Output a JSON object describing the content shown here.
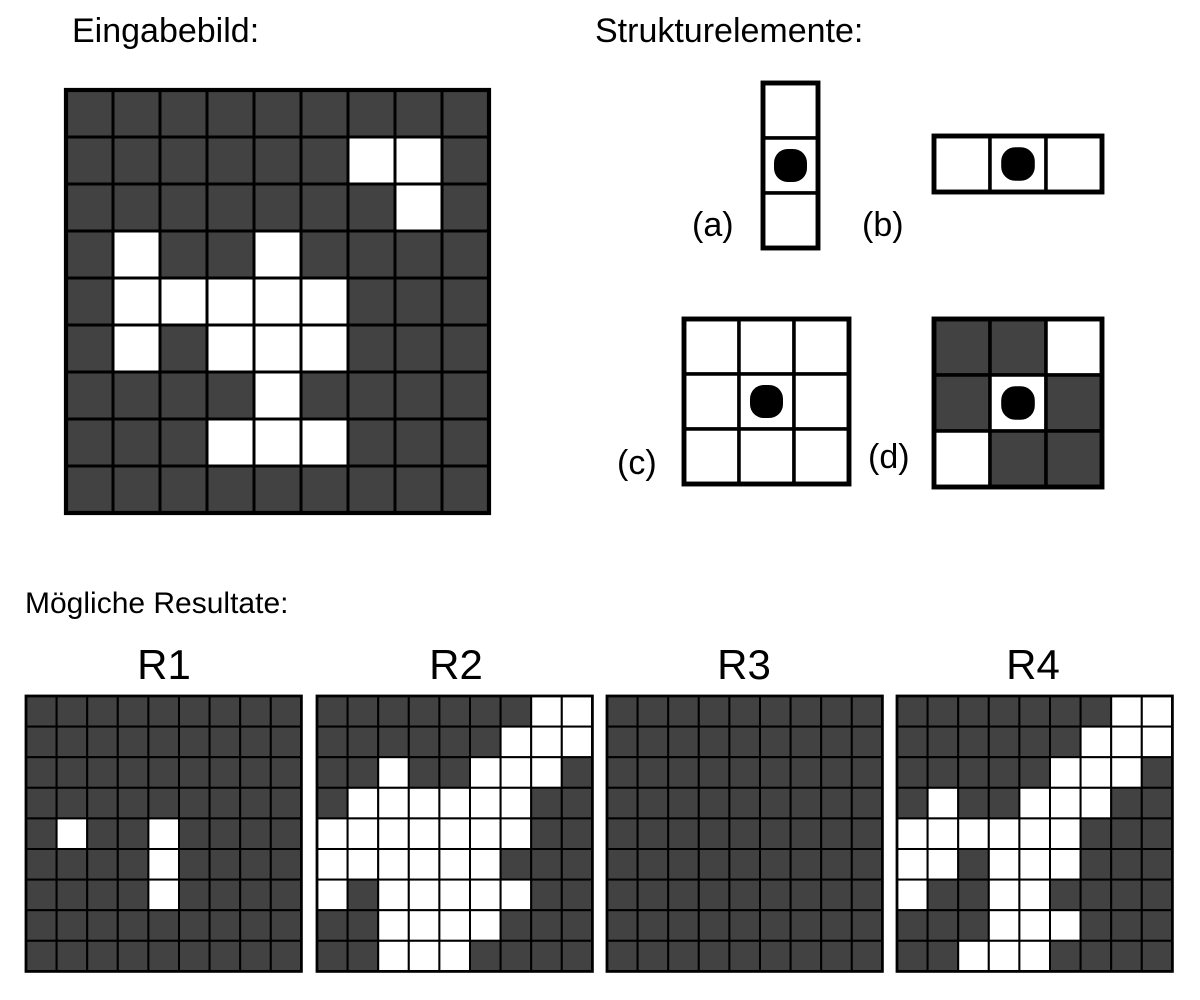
{
  "titles": {
    "input": "Eingabebild:",
    "structuring_elements": "Strukturelemente:",
    "results": "Mögliche Resultate:"
  },
  "colors": {
    "foreground": "#ffffff",
    "background": "#424242",
    "grid": "#000000",
    "origin": "#000000"
  },
  "input_image": {
    "rows": 9,
    "cols": 9,
    "cells": [
      [
        0,
        0,
        0,
        0,
        0,
        0,
        0,
        0,
        0
      ],
      [
        0,
        0,
        0,
        0,
        0,
        0,
        1,
        1,
        0
      ],
      [
        0,
        0,
        0,
        0,
        0,
        0,
        0,
        1,
        0
      ],
      [
        0,
        1,
        0,
        0,
        1,
        0,
        0,
        0,
        0
      ],
      [
        0,
        1,
        1,
        1,
        1,
        1,
        0,
        0,
        0
      ],
      [
        0,
        1,
        0,
        1,
        1,
        1,
        0,
        0,
        0
      ],
      [
        0,
        0,
        0,
        0,
        1,
        0,
        0,
        0,
        0
      ],
      [
        0,
        0,
        0,
        1,
        1,
        1,
        0,
        0,
        0
      ],
      [
        0,
        0,
        0,
        0,
        0,
        0,
        0,
        0,
        0
      ]
    ]
  },
  "structuring_elements": [
    {
      "label": "(a)",
      "rows": 3,
      "cols": 1,
      "origin": [
        1,
        0
      ],
      "cells": [
        [
          1
        ],
        [
          1
        ],
        [
          1
        ]
      ]
    },
    {
      "label": "(b)",
      "rows": 1,
      "cols": 3,
      "origin": [
        0,
        1
      ],
      "cells": [
        [
          1,
          1,
          1
        ]
      ]
    },
    {
      "label": "(c)",
      "rows": 3,
      "cols": 3,
      "origin": [
        1,
        1
      ],
      "cells": [
        [
          1,
          1,
          1
        ],
        [
          1,
          1,
          1
        ],
        [
          1,
          1,
          1
        ]
      ]
    },
    {
      "label": "(d)",
      "rows": 3,
      "cols": 3,
      "origin": [
        1,
        1
      ],
      "cells": [
        [
          0,
          0,
          1
        ],
        [
          0,
          1,
          0
        ],
        [
          1,
          0,
          0
        ]
      ]
    }
  ],
  "results": [
    {
      "label": "R1",
      "rows": 9,
      "cols": 9,
      "cells": [
        [
          0,
          0,
          0,
          0,
          0,
          0,
          0,
          0,
          0
        ],
        [
          0,
          0,
          0,
          0,
          0,
          0,
          0,
          0,
          0
        ],
        [
          0,
          0,
          0,
          0,
          0,
          0,
          0,
          0,
          0
        ],
        [
          0,
          0,
          0,
          0,
          0,
          0,
          0,
          0,
          0
        ],
        [
          0,
          1,
          0,
          0,
          1,
          0,
          0,
          0,
          0
        ],
        [
          0,
          0,
          0,
          0,
          1,
          0,
          0,
          0,
          0
        ],
        [
          0,
          0,
          0,
          0,
          1,
          0,
          0,
          0,
          0
        ],
        [
          0,
          0,
          0,
          0,
          0,
          0,
          0,
          0,
          0
        ],
        [
          0,
          0,
          0,
          0,
          0,
          0,
          0,
          0,
          0
        ]
      ]
    },
    {
      "label": "R2",
      "rows": 9,
      "cols": 9,
      "cells": [
        [
          0,
          0,
          0,
          0,
          0,
          0,
          0,
          1,
          1
        ],
        [
          0,
          0,
          0,
          0,
          0,
          0,
          1,
          1,
          1
        ],
        [
          0,
          0,
          1,
          0,
          0,
          1,
          1,
          1,
          0
        ],
        [
          0,
          1,
          1,
          1,
          1,
          1,
          1,
          0,
          0
        ],
        [
          1,
          1,
          1,
          1,
          1,
          1,
          1,
          0,
          0
        ],
        [
          1,
          1,
          1,
          1,
          1,
          1,
          0,
          0,
          0
        ],
        [
          1,
          0,
          1,
          1,
          1,
          1,
          1,
          0,
          0
        ],
        [
          0,
          0,
          1,
          1,
          1,
          1,
          0,
          0,
          0
        ],
        [
          0,
          0,
          1,
          1,
          1,
          0,
          0,
          0,
          0
        ]
      ]
    },
    {
      "label": "R3",
      "rows": 9,
      "cols": 9,
      "cells": [
        [
          0,
          0,
          0,
          0,
          0,
          0,
          0,
          0,
          0
        ],
        [
          0,
          0,
          0,
          0,
          0,
          0,
          0,
          0,
          0
        ],
        [
          0,
          0,
          0,
          0,
          0,
          0,
          0,
          0,
          0
        ],
        [
          0,
          0,
          0,
          0,
          0,
          0,
          0,
          0,
          0
        ],
        [
          0,
          0,
          0,
          0,
          0,
          0,
          0,
          0,
          0
        ],
        [
          0,
          0,
          0,
          0,
          0,
          0,
          0,
          0,
          0
        ],
        [
          0,
          0,
          0,
          0,
          0,
          0,
          0,
          0,
          0
        ],
        [
          0,
          0,
          0,
          0,
          0,
          0,
          0,
          0,
          0
        ],
        [
          0,
          0,
          0,
          0,
          0,
          0,
          0,
          0,
          0
        ]
      ]
    },
    {
      "label": "R4",
      "rows": 9,
      "cols": 9,
      "cells": [
        [
          0,
          0,
          0,
          0,
          0,
          0,
          0,
          1,
          1
        ],
        [
          0,
          0,
          0,
          0,
          0,
          0,
          1,
          1,
          1
        ],
        [
          0,
          0,
          0,
          0,
          0,
          1,
          1,
          1,
          0
        ],
        [
          0,
          1,
          0,
          0,
          1,
          1,
          1,
          0,
          0
        ],
        [
          1,
          1,
          1,
          1,
          1,
          1,
          0,
          0,
          0
        ],
        [
          1,
          1,
          0,
          1,
          1,
          1,
          0,
          0,
          0
        ],
        [
          1,
          0,
          0,
          1,
          1,
          0,
          0,
          0,
          0
        ],
        [
          0,
          0,
          0,
          1,
          1,
          1,
          0,
          0,
          0
        ],
        [
          0,
          0,
          1,
          1,
          1,
          0,
          0,
          0,
          0
        ]
      ]
    }
  ]
}
